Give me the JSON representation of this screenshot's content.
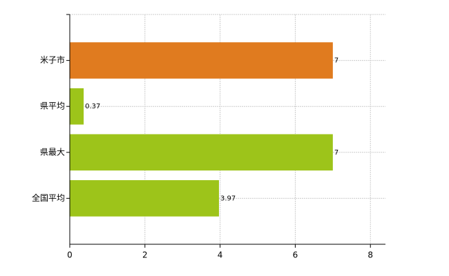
{
  "chart_data": {
    "type": "hbar",
    "categories": [
      "米子市",
      "県平均",
      "県最大",
      "全国平均"
    ],
    "values": [
      7,
      0.37,
      7,
      3.97
    ],
    "colors": [
      "#e07b1f",
      "#9dc41a",
      "#9dc41a",
      "#9dc41a"
    ],
    "xlim": [
      0,
      8.4
    ],
    "xticks": [
      0,
      2,
      4,
      6,
      8
    ],
    "grid": true
  }
}
